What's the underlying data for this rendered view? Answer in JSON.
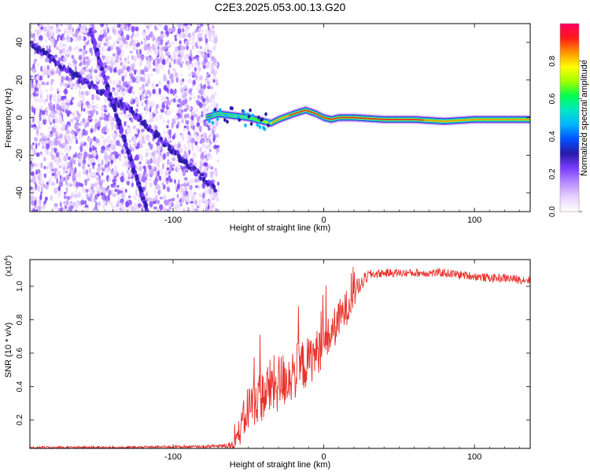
{
  "title": "C2E3.2025.053.00.13.G20",
  "colors": {
    "signal_line": "#e8322c",
    "spectrum_purple": "#7a3cff",
    "spectrum_dark": "#2a1aa8",
    "ridge_peak": "#ff1a1a"
  },
  "chart_data": [
    {
      "type": "heatmap",
      "xlabel": "Height of straight line (km)",
      "ylabel": "Frequency (Hz)",
      "xlim": [
        -195,
        137
      ],
      "ylim": [
        -50,
        50
      ],
      "xticks": [
        -100,
        0,
        100
      ],
      "yticks": [
        -40,
        -20,
        0,
        20,
        40
      ],
      "grid": false,
      "colorbar": {
        "label": "Normalized spectral amplitude",
        "range": [
          0,
          1
        ],
        "ticks": [
          "0.0",
          "0.2",
          "0.4",
          "0.6",
          "0.8"
        ],
        "colormap": [
          "#ffffff",
          "#e9d2ff",
          "#b88cff",
          "#7a3cff",
          "#2a1aa8",
          "#0050ff",
          "#00b4ff",
          "#00e6c8",
          "#00ff50",
          "#a0ff00",
          "#ffff00",
          "#ff9600",
          "#ff1a1a",
          "#ff0060"
        ]
      },
      "regions": {
        "broadband_noise_km": [
          -195,
          -70
        ],
        "ridge_start_km": -78
      },
      "ridge": {
        "x": [
          -78,
          -70,
          -60,
          -50,
          -40,
          -35,
          -30,
          -20,
          -12,
          -5,
          0,
          5,
          10,
          20,
          40,
          60,
          80,
          100,
          120,
          137
        ],
        "frequency_hz": [
          0,
          2,
          1,
          0,
          -2,
          -3,
          -1,
          2,
          4,
          2,
          0,
          -1,
          0,
          0,
          -1,
          -1,
          -2,
          -1,
          -1,
          -1
        ],
        "peak_amplitude": [
          0.4,
          0.45,
          0.5,
          0.55,
          0.7,
          0.8,
          0.85,
          0.9,
          0.95,
          0.95,
          0.95,
          0.95,
          0.95,
          0.9,
          0.9,
          0.9,
          0.85,
          0.85,
          0.85,
          0.85
        ]
      },
      "diagonal_tracks": [
        {
          "x": [
            -195,
            -170,
            -150,
            -130,
            -110,
            -90,
            -72
          ],
          "frequency_hz": [
            40,
            25,
            15,
            5,
            -10,
            -25,
            -38
          ]
        },
        {
          "x": [
            -155,
            -145,
            -135,
            -125,
            -117
          ],
          "frequency_hz": [
            47,
            20,
            -5,
            -30,
            -50
          ]
        }
      ]
    },
    {
      "type": "line",
      "xlabel": "Height of straight line (km)",
      "ylabel": "SNR (10 * v/v)",
      "y_multiplier": "(x10",
      "y_multiplier_exp": "4",
      "y_multiplier_close": ")",
      "xlim": [
        -195,
        137
      ],
      "ylim": [
        0.03,
        1.16
      ],
      "xticks": [
        -100,
        0,
        100
      ],
      "yticks": [
        0.2,
        0.4,
        0.6,
        0.8,
        1.0
      ],
      "ytick_labels": [
        "0.2",
        "0.4",
        "0.6",
        "0.8",
        "1.0"
      ],
      "grid": false,
      "series": [
        {
          "x": [
            -195,
            -160,
            -130,
            -100,
            -80,
            -70,
            -60,
            -55,
            -50,
            -45,
            -40,
            -35,
            -30,
            -25,
            -20,
            -15,
            -10,
            -5,
            0,
            5,
            10,
            15,
            20,
            25,
            30,
            40,
            50,
            60,
            70,
            80,
            90,
            100,
            110,
            120,
            130,
            137
          ],
          "values": [
            0.035,
            0.035,
            0.035,
            0.04,
            0.04,
            0.045,
            0.05,
            0.15,
            0.28,
            0.32,
            0.35,
            0.4,
            0.42,
            0.45,
            0.48,
            0.52,
            0.55,
            0.6,
            0.65,
            0.72,
            0.8,
            0.87,
            0.95,
            1.02,
            1.07,
            1.08,
            1.08,
            1.08,
            1.08,
            1.08,
            1.07,
            1.06,
            1.05,
            1.05,
            1.04,
            1.04
          ],
          "noise_amplitude": [
            0.008,
            0.008,
            0.008,
            0.008,
            0.008,
            0.01,
            0.03,
            0.1,
            0.15,
            0.15,
            0.16,
            0.18,
            0.18,
            0.17,
            0.17,
            0.16,
            0.15,
            0.14,
            0.13,
            0.12,
            0.12,
            0.11,
            0.08,
            0.05,
            0.03,
            0.025,
            0.025,
            0.025,
            0.025,
            0.025,
            0.025,
            0.025,
            0.025,
            0.025,
            0.025,
            0.025
          ]
        }
      ]
    }
  ]
}
